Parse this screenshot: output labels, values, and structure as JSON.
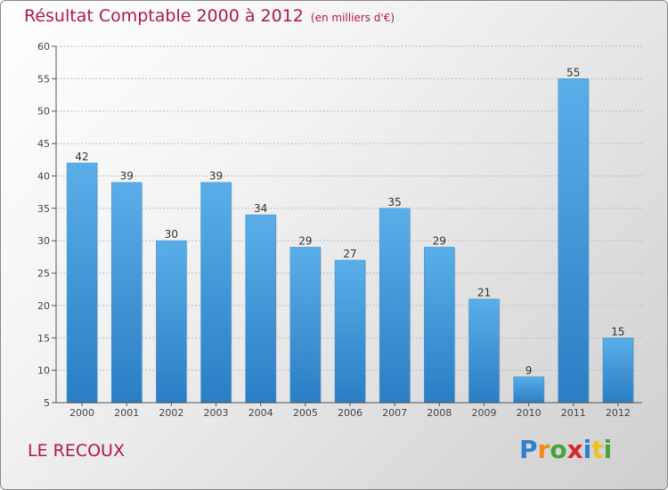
{
  "header": {
    "title": "Résultat Comptable 2000 à 2012",
    "subtitle": "(en milliers d'€)"
  },
  "footer": {
    "commune": "LE RECOUX",
    "logo_letters": [
      "P",
      "r",
      "o",
      "x",
      "i",
      "t",
      "i"
    ]
  },
  "colors": {
    "title": "#b0174e",
    "bar_top": "#5aaee8",
    "bar_bottom": "#2a7ec4",
    "grid": "#bdbdbd"
  },
  "chart_data": {
    "type": "bar",
    "title": "Résultat Comptable 2000 à 2012",
    "subtitle": "(en milliers d'€)",
    "xlabel": "",
    "ylabel": "",
    "categories": [
      "2000",
      "2001",
      "2002",
      "2003",
      "2004",
      "2005",
      "2006",
      "2007",
      "2008",
      "2009",
      "2010",
      "2011",
      "2012"
    ],
    "values": [
      42,
      39,
      30,
      39,
      34,
      29,
      27,
      35,
      29,
      21,
      9,
      55,
      15
    ],
    "ylim": [
      5,
      60
    ],
    "yticks": [
      5,
      10,
      15,
      20,
      25,
      30,
      35,
      40,
      45,
      50,
      55,
      60
    ],
    "grid": true
  }
}
